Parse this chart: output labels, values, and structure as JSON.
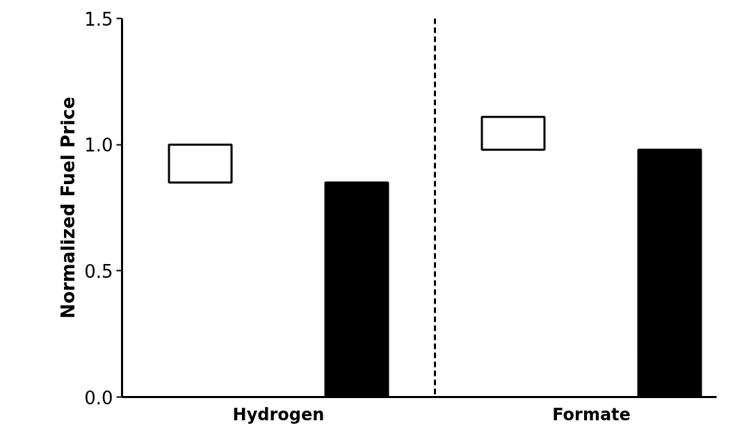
{
  "chart_data": {
    "type": "bar",
    "ylabel": "Normalized Fuel Price",
    "categories": [
      "Hydrogen",
      "Formate"
    ],
    "series": [
      {
        "color": "#ffffff",
        "base": [
          0.85,
          0.98
        ],
        "values": [
          0.15,
          0.13
        ]
      },
      {
        "color": "#000000",
        "values": [
          0.85,
          0.98
        ]
      }
    ],
    "ylim": [
      0,
      1.5
    ],
    "yticks": [
      {
        "value": 0,
        "label": "0.0"
      },
      {
        "value": 0.5,
        "label": "0.5"
      },
      {
        "value": 1,
        "label": "1.0"
      },
      {
        "value": 1.5,
        "label": "1.5"
      }
    ],
    "grid": false
  }
}
